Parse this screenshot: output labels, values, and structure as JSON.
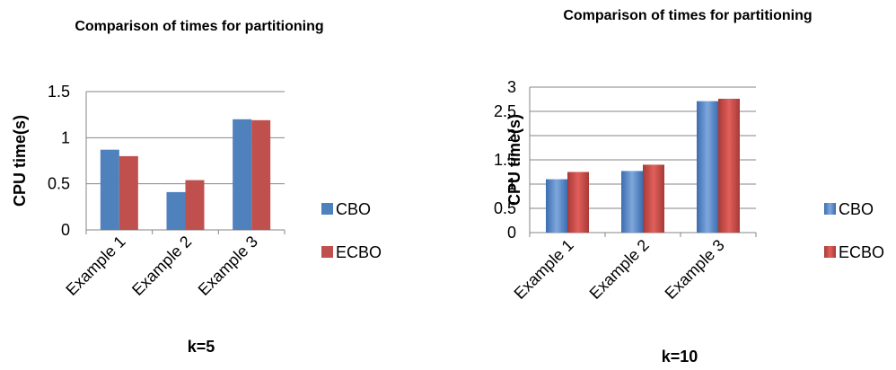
{
  "chart_data": [
    {
      "type": "bar",
      "title": "Comparison of times for partitioning",
      "xlabel": "k=5",
      "ylabel": "CPU time(s)",
      "categories": [
        "Example 1",
        "Example 2",
        "Example 3"
      ],
      "series": [
        {
          "name": "CBO",
          "values": [
            0.87,
            0.41,
            1.2
          ],
          "color": "#4F81BD"
        },
        {
          "name": "ECBO",
          "values": [
            0.8,
            0.54,
            1.19
          ],
          "color": "#C0504D"
        }
      ],
      "ylim": [
        0,
        1.5
      ],
      "yticks": [
        "0",
        "0.5",
        "1",
        "1.5"
      ],
      "gradient": false,
      "grid": true,
      "legend": "right"
    },
    {
      "type": "bar",
      "title": "Comparison of times for partitioning",
      "xlabel": "k=10",
      "ylabel": "CPU time(s)",
      "categories": [
        "Example 1",
        "Example 2",
        "Example 3"
      ],
      "series": [
        {
          "name": "CBO",
          "values": [
            1.1,
            1.27,
            2.71
          ],
          "color": "#4F81BD"
        },
        {
          "name": "ECBO",
          "values": [
            1.25,
            1.4,
            2.76
          ],
          "color": "#C0504D"
        }
      ],
      "ylim": [
        0,
        3
      ],
      "yticks": [
        "0",
        "0.5",
        "1",
        "1.5",
        "2",
        "2.5",
        "3"
      ],
      "gradient": true,
      "grid": true,
      "legend": "right"
    }
  ]
}
